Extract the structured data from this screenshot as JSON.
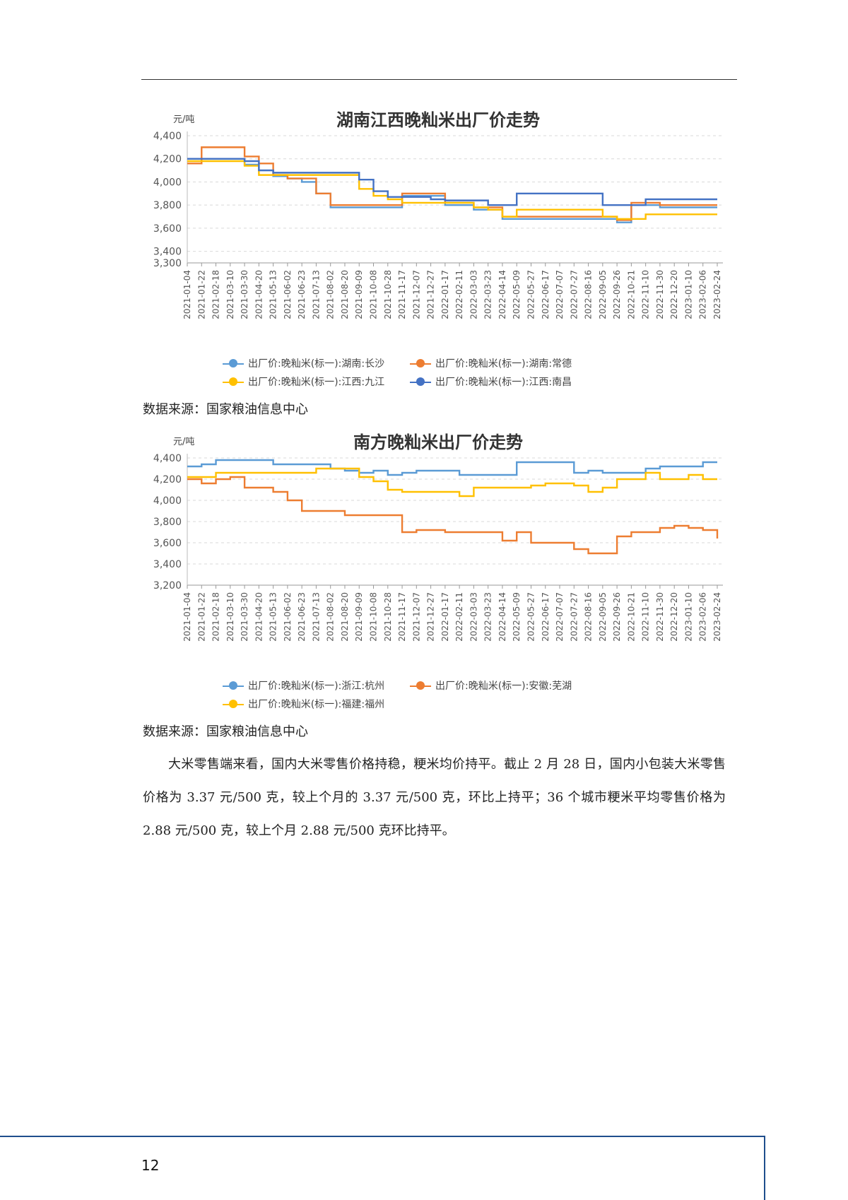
{
  "chart_data": [
    {
      "type": "line",
      "title": "湖南江西晚籼米出厂价走势",
      "unit_label": "元/吨",
      "ylim": [
        3300,
        4400
      ],
      "yticks": [
        3300,
        3400,
        3600,
        3800,
        4000,
        4200,
        4400
      ],
      "ytick_labels": [
        "3,300",
        "3,400",
        "3,600",
        "3,800",
        "4,000",
        "4,200",
        "4,400"
      ],
      "categories": [
        "2021-01-04",
        "2021-01-22",
        "2021-02-18",
        "2021-03-10",
        "2021-03-30",
        "2021-04-20",
        "2021-05-13",
        "2021-06-02",
        "2021-06-23",
        "2021-07-13",
        "2021-08-02",
        "2021-08-20",
        "2021-09-09",
        "2021-10-08",
        "2021-10-28",
        "2021-11-17",
        "2021-12-07",
        "2021-12-27",
        "2022-01-17",
        "2022-02-11",
        "2022-03-03",
        "2022-03-23",
        "2022-04-14",
        "2022-05-09",
        "2022-05-27",
        "2022-06-17",
        "2022-07-07",
        "2022-07-27",
        "2022-08-16",
        "2022-09-05",
        "2022-09-26",
        "2022-10-21",
        "2022-11-10",
        "2022-11-30",
        "2022-12-20",
        "2023-01-10",
        "2023-02-06",
        "2023-02-24"
      ],
      "grid": true,
      "legend_position": "bottom",
      "series": [
        {
          "name": "出厂价:晚籼米(标一):湖南:长沙",
          "color": "#5b9bd5",
          "values": [
            4200,
            4200,
            4200,
            4200,
            4150,
            4100,
            4050,
            4030,
            4000,
            3900,
            3780,
            3780,
            3780,
            3780,
            3780,
            3880,
            3880,
            3880,
            3800,
            3800,
            3760,
            3760,
            3680,
            3680,
            3680,
            3680,
            3680,
            3680,
            3680,
            3680,
            3650,
            3800,
            3800,
            3780,
            3780,
            3780,
            3780,
            3780
          ]
        },
        {
          "name": "出厂价:晚籼米(标一):湖南:常德",
          "color": "#ed7d31",
          "values": [
            4160,
            4300,
            4300,
            4300,
            4220,
            4160,
            4060,
            4030,
            4030,
            3900,
            3800,
            3800,
            3800,
            3800,
            3800,
            3900,
            3900,
            3900,
            3820,
            3820,
            3780,
            3780,
            3700,
            3700,
            3700,
            3700,
            3700,
            3700,
            3700,
            3700,
            3670,
            3820,
            3820,
            3800,
            3800,
            3800,
            3800,
            3800
          ]
        },
        {
          "name": "出厂价:晚籼米(标一):江西:九江",
          "color": "#ffc000",
          "values": [
            4180,
            4180,
            4180,
            4180,
            4140,
            4060,
            4060,
            4060,
            4060,
            4060,
            4060,
            4060,
            3940,
            3880,
            3850,
            3820,
            3820,
            3820,
            3820,
            3820,
            3780,
            3760,
            3700,
            3760,
            3760,
            3760,
            3760,
            3760,
            3760,
            3700,
            3680,
            3680,
            3720,
            3720,
            3720,
            3720,
            3720,
            3720
          ]
        },
        {
          "name": "出厂价:晚籼米(标一):江西:南昌",
          "color": "#4472c4",
          "values": [
            4200,
            4200,
            4200,
            4200,
            4180,
            4100,
            4080,
            4080,
            4080,
            4080,
            4080,
            4080,
            4020,
            3920,
            3870,
            3870,
            3870,
            3850,
            3840,
            3840,
            3840,
            3800,
            3800,
            3900,
            3900,
            3900,
            3900,
            3900,
            3900,
            3800,
            3800,
            3800,
            3850,
            3850,
            3850,
            3850,
            3850,
            3850
          ]
        }
      ]
    },
    {
      "type": "line",
      "title": "南方晚籼米出厂价走势",
      "unit_label": "元/吨",
      "ylim": [
        3200,
        4400
      ],
      "yticks": [
        3200,
        3400,
        3600,
        3800,
        4000,
        4200,
        4400
      ],
      "ytick_labels": [
        "3,200",
        "3,400",
        "3,600",
        "3,800",
        "4,000",
        "4,200",
        "4,400"
      ],
      "categories": [
        "2021-01-04",
        "2021-01-22",
        "2021-02-18",
        "2021-03-10",
        "2021-03-30",
        "2021-04-20",
        "2021-05-13",
        "2021-06-02",
        "2021-06-23",
        "2021-07-13",
        "2021-08-02",
        "2021-08-20",
        "2021-09-09",
        "2021-10-08",
        "2021-10-28",
        "2021-11-17",
        "2021-12-07",
        "2021-12-27",
        "2022-01-17",
        "2022-02-11",
        "2022-03-03",
        "2022-03-23",
        "2022-04-14",
        "2022-05-09",
        "2022-05-27",
        "2022-06-17",
        "2022-07-07",
        "2022-07-27",
        "2022-08-16",
        "2022-09-05",
        "2022-09-26",
        "2022-10-21",
        "2022-11-10",
        "2022-11-30",
        "2022-12-20",
        "2023-01-10",
        "2023-02-06",
        "2023-02-24"
      ],
      "grid": true,
      "legend_position": "bottom",
      "series": [
        {
          "name": "出厂价:晚籼米(标一):浙江:杭州",
          "color": "#5b9bd5",
          "values": [
            4320,
            4340,
            4380,
            4380,
            4380,
            4380,
            4340,
            4340,
            4340,
            4340,
            4300,
            4280,
            4260,
            4280,
            4240,
            4260,
            4280,
            4280,
            4280,
            4240,
            4240,
            4240,
            4240,
            4360,
            4360,
            4360,
            4360,
            4260,
            4280,
            4260,
            4260,
            4260,
            4300,
            4320,
            4320,
            4320,
            4360,
            4360
          ]
        },
        {
          "name": "出厂价:晚籼米(标一):安徽:芜湖",
          "color": "#ed7d31",
          "values": [
            4200,
            4160,
            4200,
            4220,
            4120,
            4120,
            4080,
            4000,
            3900,
            3900,
            3900,
            3860,
            3860,
            3860,
            3860,
            3700,
            3720,
            3720,
            3700,
            3700,
            3700,
            3700,
            3620,
            3700,
            3600,
            3600,
            3600,
            3540,
            3500,
            3500,
            3660,
            3700,
            3700,
            3740,
            3760,
            3740,
            3720,
            3640
          ]
        },
        {
          "name": "出厂价:晚籼米(标一):福建:福州",
          "color": "#ffc000",
          "values": [
            4220,
            4220,
            4260,
            4260,
            4260,
            4260,
            4260,
            4260,
            4260,
            4300,
            4300,
            4300,
            4220,
            4180,
            4100,
            4080,
            4080,
            4080,
            4080,
            4040,
            4120,
            4120,
            4120,
            4120,
            4140,
            4160,
            4160,
            4140,
            4080,
            4120,
            4200,
            4200,
            4260,
            4200,
            4200,
            4240,
            4200,
            4200
          ]
        }
      ]
    }
  ],
  "source_note_1": "数据来源：国家粮油信息中心",
  "source_note_2": "数据来源：国家粮油信息中心",
  "body_paragraph": "大米零售端来看，国内大米零售价格持稳，粳米均价持平。截止 2 月 28 日，国内小包装大米零售价格为 3.37 元/500 克，较上个月的 3.37 元/500 克，环比上持平；36 个城市粳米平均零售价格为 2.88 元/500 克，较上个月 2.88 元/500 克环比持平。",
  "page_number": "12"
}
